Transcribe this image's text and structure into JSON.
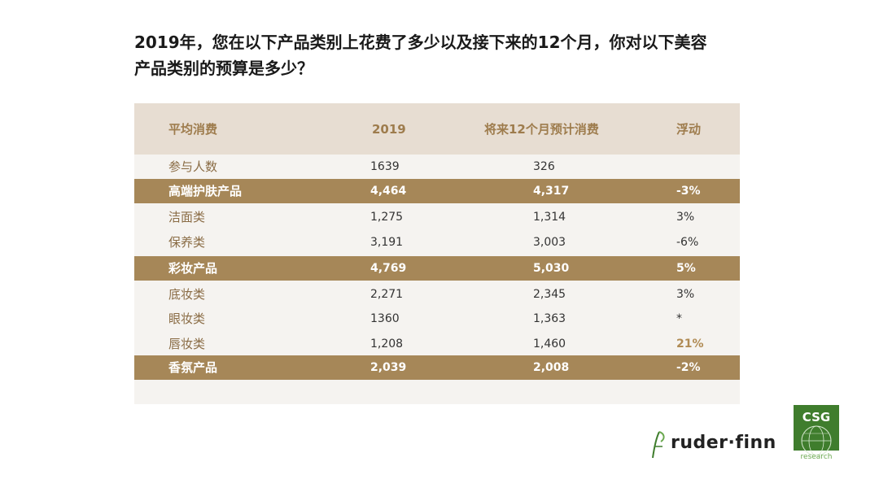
{
  "title": {
    "line1": "2019年，您在以下产品类别上花费了多少以及接下来的12个月，你对以下美容",
    "line2": "产品类别的预算是多少？"
  },
  "table": {
    "headers": [
      "平均消费",
      "2019",
      "将来12个月预计消费",
      "浮动"
    ],
    "rows": [
      {
        "label": "参与人数",
        "v2019": "1639",
        "next12": "326",
        "change": "",
        "group": false
      },
      {
        "label": "高端护肤产品",
        "v2019": "4,464",
        "next12": "4,317",
        "change": "-3%",
        "group": true
      },
      {
        "label": "洁面类",
        "v2019": "1,275",
        "next12": "1,314",
        "change": "3%",
        "group": false
      },
      {
        "label": "保养类",
        "v2019": "3,191",
        "next12": "3,003",
        "change": "-6%",
        "group": false
      },
      {
        "label": "彩妆产品",
        "v2019": "4,769",
        "next12": "5,030",
        "change": "5%",
        "group": true
      },
      {
        "label": "底妆类",
        "v2019": "2,271",
        "next12": "2,345",
        "change": "3%",
        "group": false
      },
      {
        "label": "眼妆类",
        "v2019": "1360",
        "next12": "1,363",
        "change": "*",
        "group": false
      },
      {
        "label": "唇妆类",
        "v2019": "1,208",
        "next12": "1,460",
        "change": "21%",
        "group": false
      },
      {
        "label": "香氛产品",
        "v2019": "2,039",
        "next12": "2,008",
        "change": "-2%",
        "group": true
      }
    ]
  },
  "logos": {
    "ruder_finn": "ruder·finn",
    "csg": "CSG",
    "csg_sub": "research"
  },
  "colors": {
    "header_bg": "#e7ddd2",
    "group_bg": "#a68758",
    "accent": "#b08b54",
    "csg_green": "#3f7d2d"
  }
}
